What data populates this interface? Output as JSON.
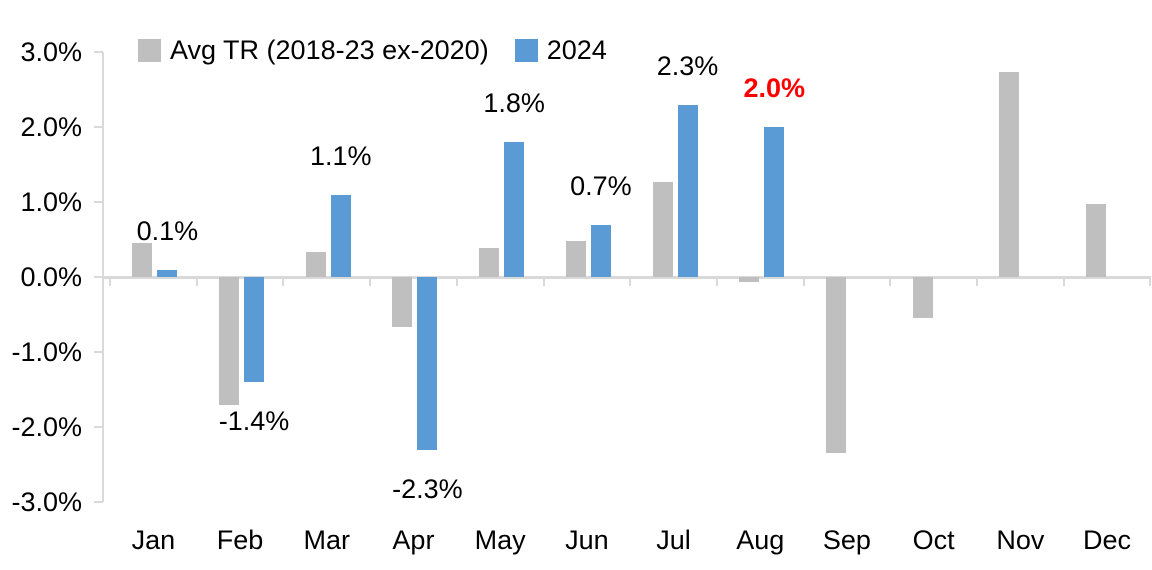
{
  "chart_data": {
    "type": "bar",
    "title": "",
    "categories": [
      "Jan",
      "Feb",
      "Mar",
      "Apr",
      "May",
      "Jun",
      "Jul",
      "Aug",
      "Sep",
      "Oct",
      "Nov",
      "Dec"
    ],
    "series": [
      {
        "name": "Avg TR (2018-23 ex-2020)",
        "color": "#BFBFBF",
        "values": [
          0.45,
          -1.7,
          0.33,
          -0.66,
          0.39,
          0.48,
          1.27,
          -0.07,
          -2.34,
          -0.54,
          2.74,
          0.98
        ]
      },
      {
        "name": "2024",
        "color": "#5B9BD5",
        "values": [
          0.1,
          -1.4,
          1.1,
          -2.3,
          1.8,
          0.7,
          2.3,
          2.0,
          null,
          null,
          null,
          null
        ]
      }
    ],
    "data_labels": [
      "0.1%",
      "-1.4%",
      "1.1%",
      "-2.3%",
      "1.8%",
      "0.7%",
      "2.3%",
      "2.0%",
      null,
      null,
      null,
      null
    ],
    "highlight_label": {
      "index": 7,
      "text": "2.0%",
      "color": "#FF0000",
      "bold": true
    },
    "y_axis": {
      "min": -3,
      "max": 3,
      "step": 1,
      "tick_labels": [
        "3.0%",
        "2.0%",
        "1.0%",
        "0.0%",
        "-1.0%",
        "-2.0%",
        "-3.0%"
      ]
    },
    "x_axis": {
      "tick_labels": [
        "Jan",
        "Feb",
        "Mar",
        "Apr",
        "May",
        "Jun",
        "Jul",
        "Aug",
        "Sep",
        "Oct",
        "Nov",
        "Dec"
      ]
    },
    "legend": {
      "position": "top",
      "entries": [
        "Avg TR (2018-23 ex-2020)",
        "2024"
      ]
    },
    "grid": false,
    "colors": {
      "axis": "#D9D9D9",
      "label_default": "#000000",
      "label_highlight": "#FF0000",
      "series_avg": "#BFBFBF",
      "series_2024": "#5B9BD5"
    }
  }
}
